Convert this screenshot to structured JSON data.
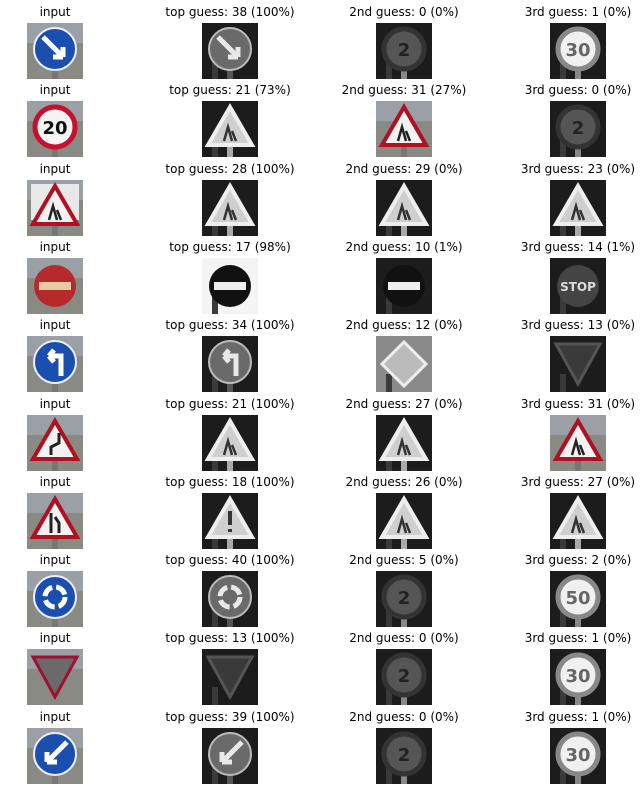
{
  "rows": [
    {
      "input_label": "input",
      "top": "top guess: 38 (100%)",
      "second": "2nd guess: 0 (0%)",
      "third": "3rd guess: 1 (0%)",
      "input_icon": "keep-right-sign-icon",
      "top_icon": "keep-right-gray-icon",
      "second_icon": "speed-limit-gray-icon",
      "third_icon": "speed-limit-30-gray-icon"
    },
    {
      "input_label": "input",
      "top": "top guess: 21 (73%)",
      "second": "2nd guess: 31 (27%)",
      "third": "3rd guess: 0 (0%)",
      "input_icon": "speed-limit-20-sign-icon",
      "top_icon": "warning-triangle-gray-icon",
      "second_icon": "warning-triangle-dark-icon",
      "third_icon": "speed-limit-gray-icon"
    },
    {
      "input_label": "input",
      "top": "top guess: 28 (100%)",
      "second": "2nd guess: 29 (0%)",
      "third": "3rd guess: 23 (0%)",
      "input_icon": "children-crossing-sign-icon",
      "top_icon": "warning-triangle-gray-icon",
      "second_icon": "warning-triangle-gray-icon",
      "third_icon": "warning-triangle-gray-icon"
    },
    {
      "input_label": "input",
      "top": "top guess: 17 (98%)",
      "second": "2nd guess: 10 (1%)",
      "third": "3rd guess: 14 (1%)",
      "input_icon": "no-entry-sign-icon",
      "top_icon": "no-entry-gray-icon",
      "second_icon": "no-passing-gray-icon",
      "third_icon": "stop-sign-gray-icon"
    },
    {
      "input_label": "input",
      "top": "top guess: 34 (100%)",
      "second": "2nd guess: 12 (0%)",
      "third": "3rd guess: 13 (0%)",
      "input_icon": "turn-left-sign-icon",
      "top_icon": "turn-left-gray-icon",
      "second_icon": "priority-road-gray-icon",
      "third_icon": "yield-gray-icon"
    },
    {
      "input_label": "input",
      "top": "top guess: 21 (100%)",
      "second": "2nd guess: 27 (0%)",
      "third": "3rd guess: 31 (0%)",
      "input_icon": "double-curve-sign-icon",
      "top_icon": "warning-triangle-gray-icon",
      "second_icon": "warning-triangle-gray-icon",
      "third_icon": "warning-triangle-dark-icon"
    },
    {
      "input_label": "input",
      "top": "top guess: 18 (100%)",
      "second": "2nd guess: 26 (0%)",
      "third": "3rd guess: 27 (0%)",
      "input_icon": "road-narrows-sign-icon",
      "top_icon": "general-caution-gray-icon",
      "second_icon": "warning-triangle-gray-icon",
      "third_icon": "warning-triangle-gray-icon"
    },
    {
      "input_label": "input",
      "top": "top guess: 40 (100%)",
      "second": "2nd guess: 5 (0%)",
      "third": "3rd guess: 2 (0%)",
      "input_icon": "roundabout-sign-icon",
      "top_icon": "roundabout-gray-icon",
      "second_icon": "speed-limit-gray-icon",
      "third_icon": "speed-limit-50-gray-icon"
    },
    {
      "input_label": "input",
      "top": "top guess: 13 (100%)",
      "second": "2nd guess: 0 (0%)",
      "third": "3rd guess: 1 (0%)",
      "input_icon": "yield-sign-icon",
      "top_icon": "yield-gray-icon",
      "second_icon": "speed-limit-gray-icon",
      "third_icon": "speed-limit-30-gray-icon"
    },
    {
      "input_label": "input",
      "top": "top guess: 39 (100%)",
      "second": "2nd guess: 0 (0%)",
      "third": "3rd guess: 1 (0%)",
      "input_icon": "keep-left-sign-icon",
      "top_icon": "keep-left-gray-icon",
      "second_icon": "speed-limit-gray-icon",
      "third_icon": "speed-limit-30-gray-icon"
    }
  ]
}
